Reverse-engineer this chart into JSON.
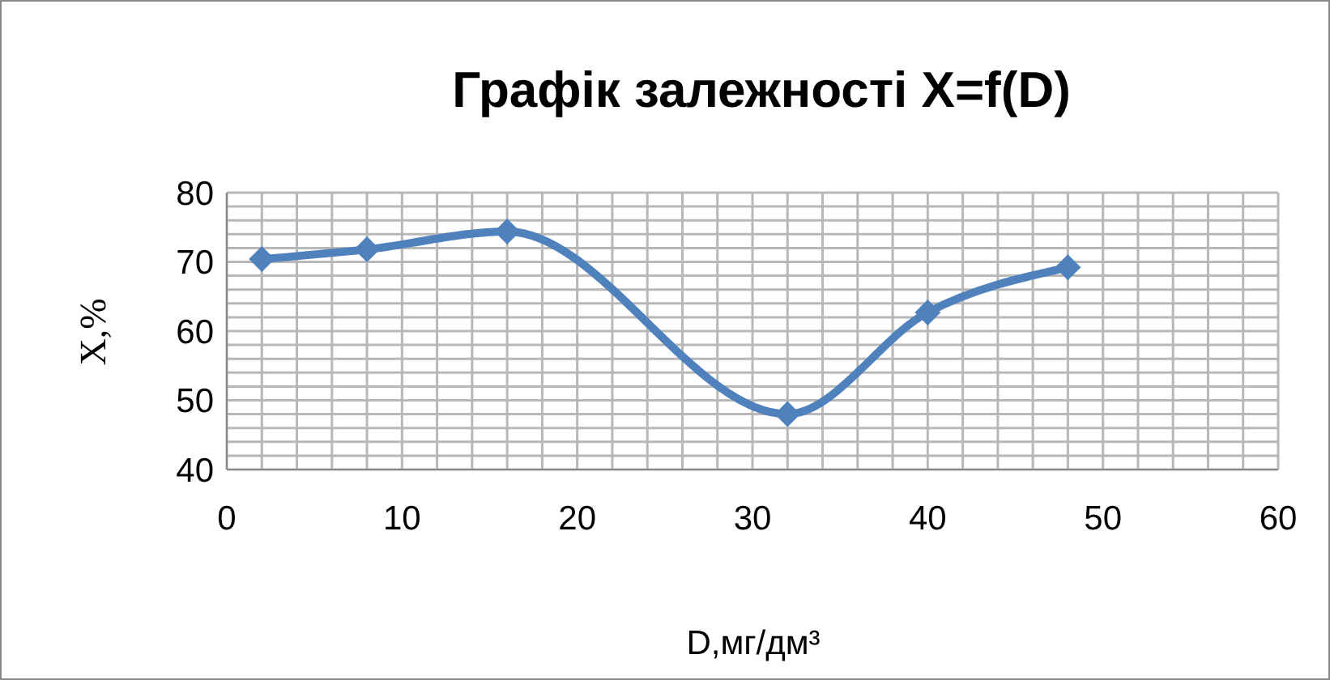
{
  "chart_data": {
    "type": "line",
    "title": "Графік залежності X=f(D)",
    "xlabel": "D,мг/дм³",
    "ylabel": "X,%",
    "x": [
      2,
      8,
      16,
      32,
      40,
      48
    ],
    "series": [
      {
        "color": "#4f81bd",
        "values": [
          70.4,
          71.8,
          74.4,
          48,
          62.7,
          69.2
        ]
      }
    ],
    "xlim": [
      0,
      60
    ],
    "xticks": [
      0,
      10,
      20,
      30,
      40,
      50,
      60
    ],
    "ylim": [
      40,
      80
    ],
    "yticks": [
      40,
      50,
      60,
      70,
      80
    ],
    "grid": true,
    "marker": "diamond",
    "line_style": "solid"
  }
}
